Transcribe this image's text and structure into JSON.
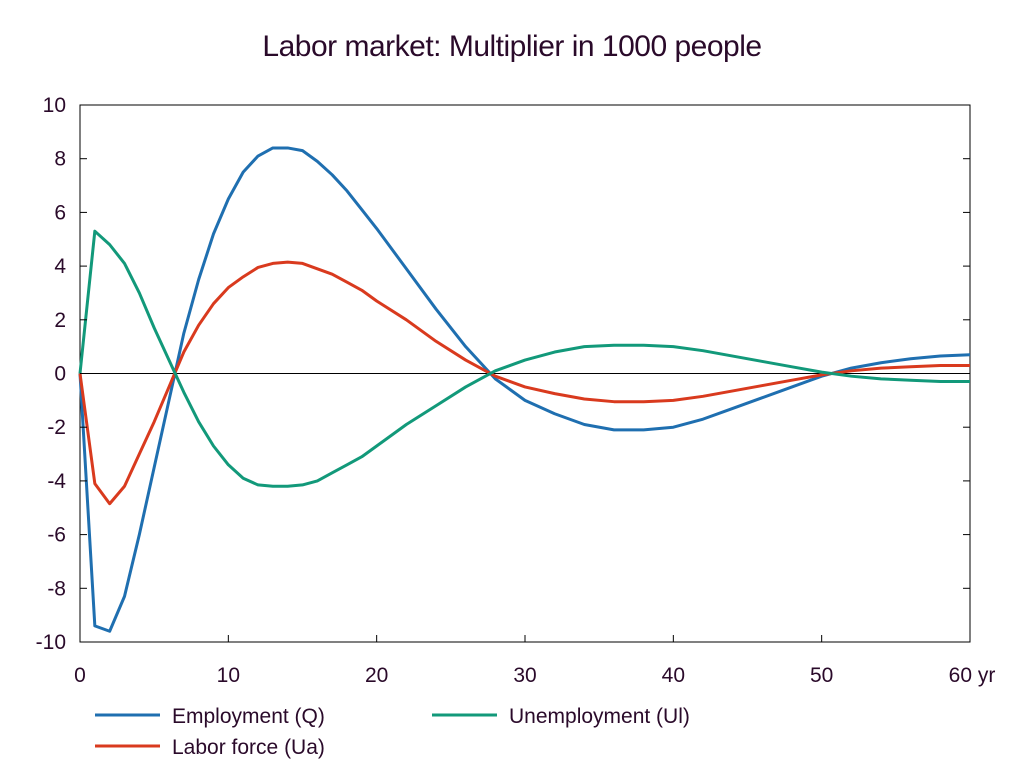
{
  "chart_data": {
    "type": "line",
    "title": "Labor market: Multiplier in 1000 people",
    "xlim": [
      0,
      60
    ],
    "ylim": [
      -10,
      10
    ],
    "x_ticks": [
      "0",
      "10",
      "20",
      "30",
      "40",
      "50",
      "60 yr"
    ],
    "x_tick_values": [
      0,
      10,
      20,
      30,
      40,
      50,
      60
    ],
    "y_ticks": [
      "10",
      "8",
      "6",
      "4",
      "2",
      "0",
      "-2",
      "-4",
      "-6",
      "-8",
      "-10"
    ],
    "y_tick_values": [
      10,
      8,
      6,
      4,
      2,
      0,
      -2,
      -4,
      -6,
      -8,
      -10
    ],
    "x": [
      0,
      1,
      2,
      3,
      4,
      5,
      6,
      7,
      8,
      9,
      10,
      11,
      12,
      13,
      14,
      15,
      16,
      17,
      18,
      19,
      20,
      22,
      24,
      26,
      28,
      29,
      30,
      32,
      34,
      36,
      38,
      40,
      42,
      44,
      46,
      48,
      50,
      52,
      54,
      56,
      58,
      60
    ],
    "series": [
      {
        "name": "Employment (Q)",
        "color": "#1f6fb0",
        "values": [
          0,
          -9.4,
          -9.6,
          -8.3,
          -6.0,
          -3.5,
          -1.0,
          1.5,
          3.5,
          5.2,
          6.5,
          7.5,
          8.1,
          8.4,
          8.4,
          8.3,
          7.9,
          7.4,
          6.8,
          6.1,
          5.4,
          3.9,
          2.4,
          1.0,
          -0.2,
          -0.6,
          -1.0,
          -1.5,
          -1.9,
          -2.1,
          -2.1,
          -2.0,
          -1.7,
          -1.3,
          -0.9,
          -0.5,
          -0.1,
          0.2,
          0.4,
          0.55,
          0.65,
          0.7
        ]
      },
      {
        "name": "Unemployment (Ul)",
        "color": "#12997a",
        "values": [
          0,
          5.3,
          4.8,
          4.1,
          3.0,
          1.7,
          0.5,
          -0.7,
          -1.8,
          -2.7,
          -3.4,
          -3.9,
          -4.15,
          -4.2,
          -4.2,
          -4.15,
          -4.0,
          -3.7,
          -3.4,
          -3.1,
          -2.7,
          -1.9,
          -1.2,
          -0.5,
          0.1,
          0.3,
          0.5,
          0.8,
          1.0,
          1.05,
          1.05,
          1.0,
          0.85,
          0.65,
          0.45,
          0.25,
          0.05,
          -0.1,
          -0.2,
          -0.25,
          -0.3,
          -0.3
        ]
      },
      {
        "name": "Labor force (Ua)",
        "color": "#d93a1e",
        "values": [
          0,
          -4.1,
          -4.85,
          -4.2,
          -3.0,
          -1.8,
          -0.5,
          0.8,
          1.8,
          2.6,
          3.2,
          3.6,
          3.95,
          4.1,
          4.15,
          4.1,
          3.9,
          3.7,
          3.4,
          3.1,
          2.7,
          2.0,
          1.2,
          0.5,
          -0.1,
          -0.3,
          -0.5,
          -0.75,
          -0.95,
          -1.05,
          -1.05,
          -1.0,
          -0.85,
          -0.65,
          -0.45,
          -0.25,
          -0.05,
          0.1,
          0.2,
          0.25,
          0.3,
          0.3
        ]
      }
    ]
  }
}
